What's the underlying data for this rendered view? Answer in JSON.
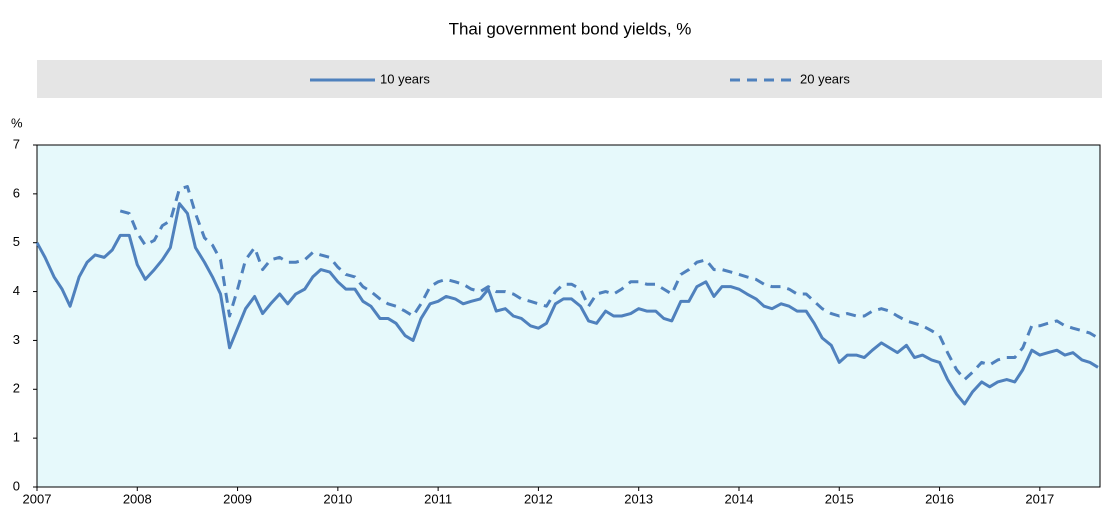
{
  "chart_data": {
    "type": "line",
    "title": "Thai government bond yields, %",
    "y_unit": "%",
    "x": [
      2007,
      2007.08,
      2007.17,
      2007.25,
      2007.33,
      2007.42,
      2007.5,
      2007.58,
      2007.67,
      2007.75,
      2007.83,
      2007.92,
      2008,
      2008.08,
      2008.17,
      2008.25,
      2008.33,
      2008.42,
      2008.5,
      2008.58,
      2008.67,
      2008.75,
      2008.83,
      2008.92,
      2009,
      2009.08,
      2009.17,
      2009.25,
      2009.33,
      2009.42,
      2009.5,
      2009.58,
      2009.67,
      2009.75,
      2009.83,
      2009.92,
      2010,
      2010.08,
      2010.17,
      2010.25,
      2010.33,
      2010.42,
      2010.5,
      2010.58,
      2010.67,
      2010.75,
      2010.83,
      2010.92,
      2011,
      2011.08,
      2011.17,
      2011.25,
      2011.33,
      2011.42,
      2011.5,
      2011.58,
      2011.67,
      2011.75,
      2011.83,
      2011.92,
      2012,
      2012.08,
      2012.17,
      2012.25,
      2012.33,
      2012.42,
      2012.5,
      2012.58,
      2012.67,
      2012.75,
      2012.83,
      2012.92,
      2013,
      2013.08,
      2013.17,
      2013.25,
      2013.33,
      2013.42,
      2013.5,
      2013.58,
      2013.67,
      2013.75,
      2013.83,
      2013.92,
      2014,
      2014.08,
      2014.17,
      2014.25,
      2014.33,
      2014.42,
      2014.5,
      2014.58,
      2014.67,
      2014.75,
      2014.83,
      2014.92,
      2015,
      2015.08,
      2015.17,
      2015.25,
      2015.33,
      2015.42,
      2015.5,
      2015.58,
      2015.67,
      2015.75,
      2015.83,
      2015.92,
      2016,
      2016.08,
      2016.17,
      2016.25,
      2016.33,
      2016.42,
      2016.5,
      2016.58,
      2016.67,
      2016.75,
      2016.83,
      2016.92,
      2017,
      2017.08,
      2017.17,
      2017.25,
      2017.33,
      2017.42,
      2017.5,
      2017.58
    ],
    "series": [
      {
        "name": "10 years",
        "color": "#4f81bd",
        "linestyle": "solid",
        "values": [
          5.0,
          4.7,
          4.3,
          4.05,
          3.7,
          4.3,
          4.6,
          4.75,
          4.7,
          4.85,
          5.15,
          5.15,
          4.55,
          4.25,
          4.45,
          4.65,
          4.9,
          5.8,
          5.6,
          4.9,
          4.6,
          4.3,
          3.95,
          2.85,
          3.25,
          3.65,
          3.9,
          3.55,
          3.75,
          3.95,
          3.75,
          3.95,
          4.05,
          4.3,
          4.45,
          4.4,
          4.2,
          4.05,
          4.05,
          3.8,
          3.7,
          3.45,
          3.45,
          3.35,
          3.1,
          3.0,
          3.45,
          3.75,
          3.8,
          3.9,
          3.85,
          3.75,
          3.8,
          3.85,
          4.05,
          3.6,
          3.65,
          3.5,
          3.45,
          3.3,
          3.25,
          3.35,
          3.75,
          3.85,
          3.85,
          3.7,
          3.4,
          3.35,
          3.6,
          3.5,
          3.5,
          3.55,
          3.65,
          3.6,
          3.6,
          3.45,
          3.4,
          3.8,
          3.8,
          4.1,
          4.2,
          3.9,
          4.1,
          4.1,
          4.05,
          3.95,
          3.85,
          3.7,
          3.65,
          3.75,
          3.7,
          3.6,
          3.6,
          3.35,
          3.05,
          2.9,
          2.55,
          2.7,
          2.7,
          2.65,
          2.8,
          2.95,
          2.85,
          2.75,
          2.9,
          2.65,
          2.7,
          2.6,
          2.55,
          2.2,
          1.9,
          1.7,
          1.95,
          2.15,
          2.05,
          2.15,
          2.2,
          2.15,
          2.4,
          2.8,
          2.7,
          2.75,
          2.8,
          2.7,
          2.75,
          2.6,
          2.55,
          2.45
        ]
      },
      {
        "name": "20 years",
        "color": "#4f81bd",
        "linestyle": "dashed",
        "values": [
          null,
          null,
          null,
          null,
          null,
          null,
          null,
          null,
          null,
          null,
          5.65,
          5.6,
          5.2,
          4.95,
          5.05,
          5.35,
          5.45,
          6.1,
          6.15,
          5.6,
          5.1,
          4.95,
          4.65,
          3.5,
          4.05,
          4.65,
          4.9,
          4.45,
          4.65,
          4.7,
          4.6,
          4.6,
          4.65,
          4.8,
          4.75,
          4.7,
          4.5,
          4.35,
          4.3,
          4.1,
          4.0,
          3.85,
          3.75,
          3.7,
          3.6,
          3.5,
          3.75,
          4.1,
          4.2,
          4.25,
          4.2,
          4.15,
          4.05,
          4.0,
          4.1,
          4.0,
          4.0,
          3.95,
          3.85,
          3.8,
          3.75,
          3.7,
          4.0,
          4.15,
          4.15,
          4.05,
          3.7,
          3.95,
          4.0,
          3.95,
          4.05,
          4.2,
          4.2,
          4.15,
          4.15,
          4.05,
          3.95,
          4.35,
          4.45,
          4.6,
          4.65,
          4.45,
          4.45,
          4.4,
          4.35,
          4.3,
          4.25,
          4.15,
          4.1,
          4.1,
          4.05,
          3.95,
          3.95,
          3.8,
          3.65,
          3.55,
          3.5,
          3.55,
          3.5,
          3.5,
          3.6,
          3.65,
          3.6,
          3.5,
          3.4,
          3.35,
          3.3,
          3.2,
          3.1,
          2.75,
          2.4,
          2.2,
          2.35,
          2.55,
          2.5,
          2.6,
          2.65,
          2.65,
          2.85,
          3.3,
          3.3,
          3.35,
          3.4,
          3.3,
          3.25,
          3.2,
          3.15,
          3.05
        ]
      }
    ],
    "xlim": [
      2007,
      2017.6
    ],
    "xticks": [
      2007,
      2008,
      2009,
      2010,
      2011,
      2012,
      2013,
      2014,
      2015,
      2016,
      2017
    ],
    "ylim": [
      0,
      7
    ],
    "yticks": [
      0,
      1,
      2,
      3,
      4,
      5,
      6,
      7
    ],
    "plot_background": "#e6f9fb",
    "legend_background": "#e5e5e5"
  }
}
